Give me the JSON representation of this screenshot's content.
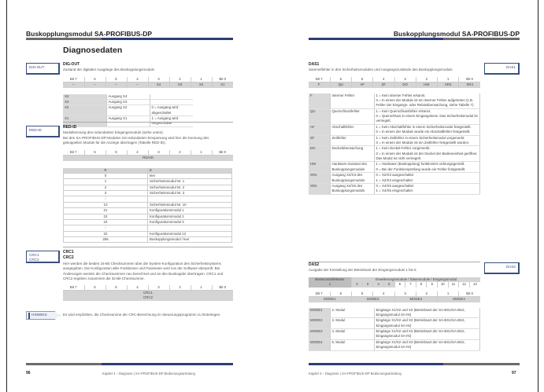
{
  "header": {
    "title": "Buskopplungsmodul SA-PROFIBUS-DP"
  },
  "left": {
    "page_title": "Diagnosedaten",
    "digout": {
      "side": "DIG-OUT",
      "heading": "DIG-OUT",
      "desc": "Zustand der digitalen Ausgänge des Buskopplungsmoduls",
      "bits": [
        "Bit 7",
        "6",
        "5",
        "4",
        "3",
        "2",
        "1",
        "Bit 0"
      ],
      "values": [
        "–",
        "–",
        "–",
        "–",
        "X4",
        "X3",
        "X2",
        "X1"
      ],
      "legend": [
        [
          "X4",
          "Ausgang X4",
          ""
        ],
        [
          "X3",
          "Ausgang X3",
          ""
        ],
        [
          "X2",
          "Ausgang X2",
          "0 = Ausgang wird abgeschaltet"
        ],
        [
          "X1",
          "Ausgang X1",
          "1 = Ausgang wird eingeschaltet"
        ]
      ]
    },
    "redid": {
      "side": "RED-ID",
      "heading": "RED-ID",
      "text": [
        "Modulkennung des redundanten Eingangsmoduls (siehe unten).",
        "Bei den SA-PROFIBUS-DP-Modulen mit redundanter Einspeisung wird hier die Kennung des",
        "gekoppelten Moduls für die Anzeige übertragen (Tabelle RED-ID)."
      ],
      "bits": [
        "Bit 7",
        "6",
        "5",
        "4",
        "3",
        "2",
        "1",
        "Bit 0"
      ],
      "span": "RDAID",
      "table_header": [
        "RED-ID",
        "Bedeutung RED-ID"
      ],
      "rows": [
        [
          "0",
          "leer"
        ],
        [
          "1",
          "Sicherheitsmodul Nr. 1"
        ],
        [
          "2",
          "Sicherheitsmodul Nr. 2"
        ],
        [
          "3",
          "Sicherheitsmodul Nr. 3"
        ],
        [
          "⋮",
          ""
        ],
        [
          "10",
          "Sicherheitsmodul Nr. 10"
        ],
        [
          "21",
          "Konfigurationsmodul 1"
        ],
        [
          "22",
          "Konfigurationsmodul 2"
        ],
        [
          "23",
          "Konfigurationsmodul 3"
        ],
        [
          "⋮",
          ""
        ],
        [
          "32",
          "Konfigurationsmodul 12"
        ],
        [
          "255",
          "Buskopplungsmodul / leer"
        ]
      ]
    },
    "crc": {
      "side1": "CRC1",
      "side2": "CRC2",
      "heading1": "CRC1",
      "heading2": "CRC2",
      "text": "Hier werden die beiden 16-Bit Checksummen über die System-Konfiguration des Sicherheitssystems ausgegeben. Die Konfiguration aller Funktionen und Parameter wird von der Software überprüft. Bei Änderungen werden die Checksummen neu berechnet und an den Buskoppler übertragen. CRC1 und CRC2 ergeben zusammen die 32-Bit-Checksumme.",
      "bits": [
        "Bit 7",
        "6",
        "5",
        "4",
        "3",
        "2",
        "1",
        "Bit 0"
      ],
      "row1": "CRC1",
      "row2": "CRC2"
    },
    "note": {
      "label": "HINWEIS",
      "text": "Es wird empfohlen, die Checksumme der CRC-Berechnung im Steuerungsprogramm zu hinterlegen."
    },
    "footer": {
      "page": "96",
      "text": "Kapitel 4 – Diagnose | SA-PROFIBUS-DP Bedienungsanleitung"
    }
  },
  "right": {
    "das1": {
      "side": "DAS1",
      "heading": "DAS1",
      "desc": "Sammelfehler in den Sicherheitsmodulen und Ausgangszustände des Buskopplungsmoduls",
      "bits": [
        "Bit 7",
        "6",
        "5",
        "4",
        "3",
        "2",
        "1",
        "Bit 0"
      ],
      "values": [
        "F",
        "QU",
        "AF",
        "ZF",
        "DO",
        "HW",
        "XR2",
        "XR4"
      ],
      "rows": [
        [
          "F",
          "Interner Fehler",
          "1 = Kein interner Fehler erkannt.\n0 = In einem der Module ist ein interner Fehler aufgetreten (z.B. Fehler der Eingangs- oder Relaisüberwachung, siehe Tabelle 7)."
        ],
        [
          "QU",
          "Querschlussfehler",
          "1 = Kein Querschlussfehler erkannt.\n0 = Querschluss in einem Eingangskreis. Das Sicherheitsmodul ist verriegelt."
        ],
        [
          "AF",
          "Abschaltfehler",
          "1 = Kein Abschaltfehler in einem Sicherheitsmodul festgestellt.\n0 = In einem der Module wurde ein Abschaltfehler festgestellt."
        ],
        [
          "ZF",
          "Zeitfehler",
          "1 = Kein Zeitfehler in einem Sicherheitsmodul vorgemerkt.\n0 = In einem der Module ist ein Zeitfehler festgestellt worden."
        ],
        [
          "DO",
          "Deckelüberwachung",
          "1 = Kein Deckel-Fehler vorgemerkt.\n0 = In einem der Module ist der Deckel der Bedieneinheit geöffnet. Das Modul ist nicht verriegelt."
        ],
        [
          "HW",
          "Hardware-Zustand des Buskopplungsmoduls",
          "1 = Hardware (Buskopplung) funktioniert ordnungsgemäß.\n0 = Bei der Funktionsprüfung wurde ein Fehler festgestellt."
        ],
        [
          "XR2",
          "Ausgang X2/X3 des Buskopplungsmoduls",
          "0 = X2/X3 ausgeschaltet\n1 = X2/X3 eingeschaltet"
        ],
        [
          "XR4",
          "Ausgang X4/X5 des Buskopplungsmoduls",
          "0 = X4/X5 ausgeschaltet\n1 = X4/X5 eingeschaltet"
        ]
      ]
    },
    "das2": {
      "side": "DAS2",
      "heading": "DAS2",
      "desc": "Ausgabe der Einstellung der Betriebsart der Eingangsmodule 1 bis 5",
      "grp_left": "Basismodul/Master",
      "grp_right": "Erweiterungsmodule / Slavemodule / Eingangsmodul",
      "modules": [
        "1",
        "2",
        "3",
        "4",
        "5",
        "6",
        "7",
        "8",
        "9",
        "10",
        "11",
        "12",
        "13"
      ],
      "bits": [
        "Bit 7",
        "6",
        "5",
        "4",
        "3",
        "2",
        "1",
        "Bit 0"
      ],
      "modes": [
        "MODE1",
        "MODE2",
        "MODE3",
        "MODE4"
      ],
      "rows": [
        [
          "MODE1",
          "2. Modul",
          "Eingänge X1/X2 und X3 (Betriebsart der SA-BS1/SA-BS2, Eingangsmodul SA-IN)"
        ],
        [
          "MODE2",
          "3. Modul",
          "Eingänge X1/X2 und X3 (Betriebsart der SA-BS1/SA-BS2, Eingangsmodul SA-IN)"
        ],
        [
          "MODE3",
          "4. Modul",
          "Eingänge X1/X2 und X3 (Betriebsart der SA-BS1/SA-BS2, Eingangsmodul SA-IN)"
        ],
        [
          "MODE4",
          "5. Modul",
          "Eingänge X1/X2 und X3 (Betriebsart der SA-BS1/SA-BS2, Eingangsmodul SA-IN)"
        ]
      ]
    },
    "footer": {
      "page": "97",
      "text": "Kapitel 4 – Diagnose | SA-PROFIBUS-DP Bedienungsanleitung"
    }
  },
  "colors": {
    "accent": "#2b3f72",
    "bar_gray": "#6b6b6b",
    "table_gray": "#d4d4d4"
  }
}
